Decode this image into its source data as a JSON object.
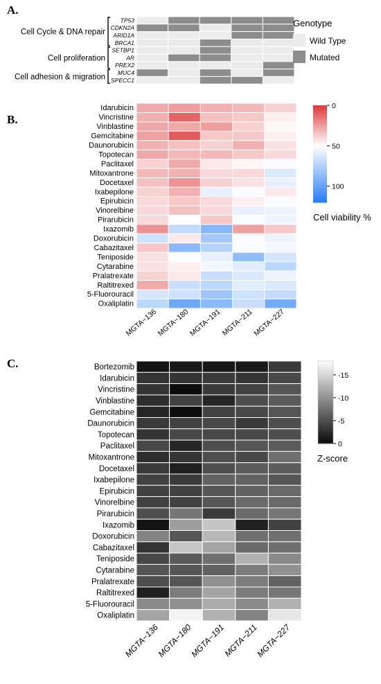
{
  "chart_data": [
    {
      "panel": "A.",
      "type": "heatmap",
      "rows": [
        "TP53",
        "CDKN2A",
        "ARID1A",
        "BRCA1",
        "SETBP1",
        "AR",
        "PREX2",
        "MUC4",
        "SPECC1"
      ],
      "columns": [
        "MGTA-136",
        "MGTA-180",
        "MGTA-191",
        "MGTA-211",
        "MGTA-227"
      ],
      "groups": [
        {
          "label": "Cell Cycle & DNA repair",
          "start": 0,
          "end": 3
        },
        {
          "label": "Cell proliferation",
          "start": 4,
          "end": 6
        },
        {
          "label": "Cell adhesion & migration",
          "start": 7,
          "end": 8
        }
      ],
      "values": [
        [
          0,
          1,
          1,
          1,
          1
        ],
        [
          1,
          1,
          0,
          1,
          1
        ],
        [
          0,
          0,
          0,
          1,
          1
        ],
        [
          0,
          0,
          1,
          0,
          0
        ],
        [
          0,
          0,
          1,
          0,
          0
        ],
        [
          0,
          1,
          1,
          0,
          0
        ],
        [
          0,
          0,
          0,
          0,
          1
        ],
        [
          1,
          0,
          1,
          0,
          1
        ],
        [
          0,
          0,
          1,
          1,
          0
        ]
      ],
      "legend": {
        "title": "Genotype",
        "categories": [
          "Wild Type",
          "Mutated"
        ],
        "colors": [
          "#ebebeb",
          "#8c8c8c"
        ]
      }
    },
    {
      "panel": "B.",
      "type": "heatmap",
      "rows": [
        "Idarubicin",
        "Vincristine",
        "Vinblastine",
        "Gemcitabine",
        "Daunorubicin",
        "Topotecan",
        "Paclitaxel",
        "Mitoxantrone",
        "Docetaxel",
        "Ixabepilone",
        "Epirubicin",
        "Vinorelbine",
        "Pirarubicin",
        "Ixazomib",
        "Doxorubicin",
        "Cabazitaxel",
        "Teniposide",
        "Cytarabine",
        "Pralatrexate",
        "Raltitrexed",
        "5-Fluorouracil",
        "Oxaliplatin"
      ],
      "columns": [
        "MGTA−136",
        "MGTA−180",
        "MGTA−191",
        "MGTA−211",
        "MGTA−227"
      ],
      "values": [
        [
          28,
          25,
          30,
          32,
          38
        ],
        [
          30,
          10,
          34,
          36,
          46
        ],
        [
          28,
          28,
          25,
          38,
          48
        ],
        [
          26,
          8,
          36,
          36,
          46
        ],
        [
          30,
          34,
          38,
          30,
          42
        ],
        [
          28,
          32,
          32,
          36,
          40
        ],
        [
          38,
          28,
          44,
          48,
          52
        ],
        [
          32,
          30,
          40,
          40,
          62
        ],
        [
          34,
          22,
          38,
          42,
          58
        ],
        [
          38,
          30,
          58,
          52,
          44
        ],
        [
          40,
          36,
          40,
          46,
          52
        ],
        [
          40,
          34,
          40,
          58,
          56
        ],
        [
          40,
          50,
          36,
          52,
          56
        ],
        [
          22,
          70,
          90,
          26,
          36
        ],
        [
          66,
          44,
          80,
          52,
          56
        ],
        [
          36,
          88,
          74,
          52,
          54
        ],
        [
          42,
          50,
          58,
          86,
          64
        ],
        [
          42,
          46,
          54,
          60,
          72
        ],
        [
          38,
          44,
          68,
          62,
          56
        ],
        [
          28,
          68,
          72,
          60,
          62
        ],
        [
          64,
          66,
          82,
          66,
          70
        ],
        [
          72,
          98,
          88,
          68,
          96
        ]
      ],
      "colorbar": {
        "title": "Cell viability %",
        "ticks": [
          0,
          50,
          100
        ],
        "min": 0,
        "max": 120
      }
    },
    {
      "panel": "C.",
      "type": "heatmap",
      "rows": [
        "Bortezomib",
        "Idarubicin",
        "Vincristine",
        "Vinblastine",
        "Gemcitabine",
        "Daunorubicin",
        "Topotecan",
        "Paclitaxel",
        "Mitoxantrone",
        "Docetaxel",
        "Ixabepilone",
        "Epirubicin",
        "Vinorelbine",
        "Pirarubicin",
        "Ixazomib",
        "Doxorubicin",
        "Cabazitaxel",
        "Teniposide",
        "Cytarabine",
        "Pralatrexate",
        "Raltitrexed",
        "5-Fluorouracil",
        "Oxaliplatin"
      ],
      "columns": [
        "MGTA−136",
        "MGTA−180",
        "MGTA−191",
        "MGTA−211",
        "MGTA−227"
      ],
      "values": [
        [
          0.5,
          1.0,
          0.8,
          1.0,
          3.5
        ],
        [
          3.0,
          3.0,
          3.5,
          3.0,
          4.5
        ],
        [
          3.0,
          0.0,
          3.5,
          4.0,
          5.5
        ],
        [
          2.5,
          4.0,
          2.0,
          5.0,
          6.0
        ],
        [
          2.0,
          0.0,
          4.0,
          4.5,
          5.5
        ],
        [
          3.5,
          4.0,
          4.5,
          3.5,
          5.0
        ],
        [
          3.0,
          4.5,
          4.5,
          4.5,
          5.0
        ],
        [
          4.5,
          2.0,
          5.0,
          5.5,
          6.0
        ],
        [
          2.5,
          3.0,
          5.0,
          4.5,
          7.5
        ],
        [
          3.5,
          1.5,
          5.0,
          6.0,
          6.0
        ],
        [
          4.0,
          3.5,
          6.5,
          6.5,
          5.5
        ],
        [
          4.0,
          4.0,
          5.5,
          6.5,
          7.0
        ],
        [
          4.0,
          4.0,
          5.5,
          7.0,
          7.0
        ],
        [
          5.0,
          8.0,
          3.5,
          7.0,
          8.0
        ],
        [
          0.5,
          11.0,
          14.0,
          1.5,
          4.0
        ],
        [
          9.0,
          5.5,
          13.0,
          7.5,
          7.5
        ],
        [
          3.0,
          14.0,
          11.5,
          7.0,
          7.5
        ],
        [
          4.5,
          6.0,
          7.5,
          12.5,
          9.5
        ],
        [
          5.5,
          5.5,
          6.5,
          8.5,
          10.0
        ],
        [
          5.0,
          5.5,
          10.0,
          8.5,
          6.5
        ],
        [
          1.5,
          8.5,
          11.5,
          8.5,
          8.0
        ],
        [
          9.5,
          10.0,
          12.0,
          9.5,
          12.5
        ],
        [
          11.5,
          17.5,
          12.5,
          9.0,
          16.5
        ]
      ],
      "colorbar": {
        "title": "Z-score",
        "ticks": [
          0,
          -5,
          -10,
          -15
        ],
        "min": 0,
        "max": -18
      }
    }
  ]
}
